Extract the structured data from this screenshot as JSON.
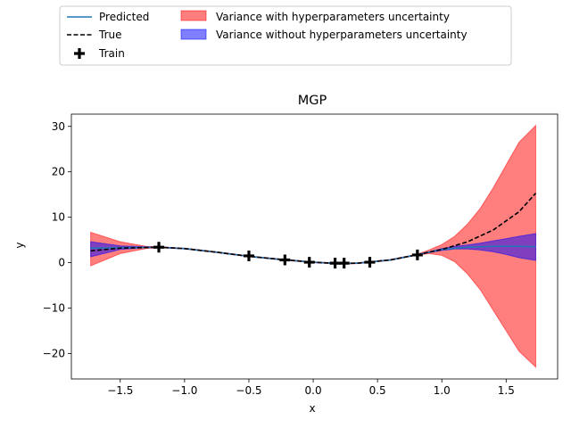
{
  "chart_data": {
    "type": "line",
    "title": "MGP",
    "xlabel": "x",
    "ylabel": "y",
    "xlim": [
      -1.88,
      1.9
    ],
    "ylim": [
      -25.6,
      32.7
    ],
    "grid": false,
    "xticks": [
      -1.5,
      -1.0,
      -0.5,
      0.0,
      0.5,
      1.0,
      1.5
    ],
    "xtick_labels": [
      "−1.5",
      "−1.0",
      "−0.5",
      "0.0",
      "0.5",
      "1.0",
      "1.5"
    ],
    "yticks": [
      -20,
      -10,
      0,
      10,
      20,
      30
    ],
    "ytick_labels": [
      "−20",
      "−10",
      "0",
      "10",
      "20",
      "30"
    ],
    "legend": {
      "placement": "above-left",
      "entries": [
        {
          "label": "Predicted",
          "kind": "line",
          "color": "#1f77b4"
        },
        {
          "label": "True",
          "kind": "dashed",
          "color": "#000000"
        },
        {
          "label": "Train",
          "kind": "marker",
          "color": "#000000"
        },
        {
          "label": "Variance with hyperparameters uncertainty",
          "kind": "patch",
          "color": "#ff0000"
        },
        {
          "label": "Variance without hyperparameters uncertainty",
          "kind": "patch",
          "color": "#0000ff"
        }
      ]
    },
    "series": [
      {
        "name": "Predicted",
        "color": "#1f77b4",
        "x": [
          -1.73,
          -1.5,
          -1.2,
          -1.0,
          -0.75,
          -0.5,
          -0.25,
          0.0,
          0.2,
          0.35,
          0.6,
          0.8,
          1.0,
          1.2,
          1.4,
          1.6,
          1.73
        ],
        "y": [
          3.2,
          3.3,
          3.4,
          3.1,
          2.3,
          1.4,
          0.7,
          0.1,
          -0.2,
          -0.1,
          0.6,
          1.7,
          2.9,
          3.4,
          3.6,
          3.6,
          3.5
        ]
      },
      {
        "name": "True",
        "color": "#000000",
        "x": [
          -1.73,
          -1.5,
          -1.2,
          -1.0,
          -0.75,
          -0.5,
          -0.25,
          0.0,
          0.2,
          0.35,
          0.6,
          0.8,
          1.0,
          1.2,
          1.4,
          1.6,
          1.73
        ],
        "y": [
          2.6,
          3.2,
          3.4,
          3.1,
          2.3,
          1.4,
          0.7,
          0.1,
          -0.2,
          -0.1,
          0.6,
          1.7,
          2.9,
          4.6,
          7.2,
          11.2,
          15.3
        ]
      },
      {
        "name": "Train",
        "color": "#000000",
        "x": [
          -1.2,
          -0.5,
          -0.22,
          -0.03,
          0.17,
          0.24,
          0.44,
          0.81
        ],
        "y": [
          3.4,
          1.5,
          0.6,
          0.1,
          -0.1,
          -0.1,
          0.1,
          1.7
        ]
      }
    ],
    "bands": [
      {
        "name": "Variance with hyperparameters uncertainty",
        "color": "#ff0000",
        "opacity": 0.5,
        "x": [
          -1.73,
          -1.5,
          -1.3,
          -1.2,
          -1.0,
          -0.75,
          -0.5,
          -0.25,
          0.0,
          0.2,
          0.35,
          0.6,
          0.8,
          0.9,
          1.0,
          1.1,
          1.2,
          1.3,
          1.4,
          1.5,
          1.6,
          1.73
        ],
        "lower": [
          -0.7,
          2.0,
          3.1,
          3.3,
          3.0,
          2.2,
          1.3,
          0.6,
          0.0,
          -0.3,
          -0.2,
          0.5,
          1.6,
          2.0,
          1.6,
          0.2,
          -2.5,
          -6.0,
          -10.5,
          -15.0,
          -19.5,
          -23.0
        ],
        "upper": [
          6.7,
          4.6,
          3.6,
          3.5,
          3.2,
          2.4,
          1.5,
          0.8,
          0.2,
          -0.1,
          0.0,
          0.7,
          1.8,
          2.8,
          4.0,
          5.8,
          8.5,
          12.0,
          16.5,
          21.5,
          26.5,
          30.2
        ]
      },
      {
        "name": "Variance without hyperparameters uncertainty",
        "color": "#0000ff",
        "opacity": 0.5,
        "x": [
          -1.73,
          -1.5,
          -1.3,
          -1.2,
          -1.0,
          -0.75,
          -0.5,
          -0.25,
          0.0,
          0.2,
          0.35,
          0.6,
          0.8,
          0.9,
          1.0,
          1.1,
          1.2,
          1.3,
          1.4,
          1.5,
          1.6,
          1.73
        ],
        "lower": [
          1.3,
          2.9,
          3.3,
          3.35,
          3.05,
          2.25,
          1.35,
          0.65,
          0.05,
          -0.25,
          -0.15,
          0.55,
          1.65,
          2.2,
          2.7,
          3.0,
          3.0,
          2.8,
          2.4,
          1.8,
          1.1,
          0.5
        ],
        "upper": [
          4.6,
          3.7,
          3.5,
          3.45,
          3.15,
          2.35,
          1.45,
          0.75,
          0.15,
          -0.15,
          -0.05,
          0.65,
          1.75,
          2.4,
          3.1,
          3.6,
          3.9,
          4.3,
          4.8,
          5.3,
          5.8,
          6.4
        ]
      }
    ]
  }
}
